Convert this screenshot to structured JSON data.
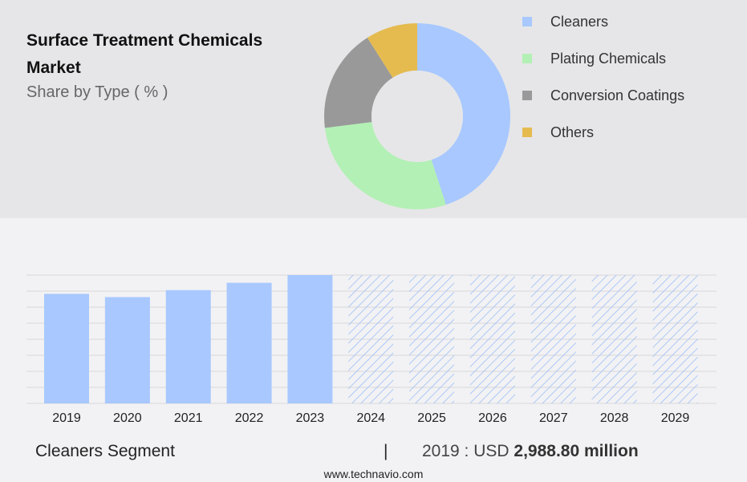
{
  "header": {
    "title": "Surface Treatment Chemicals Market",
    "subtitle": "Share by Type ( % )"
  },
  "footer": {
    "segment_label": "Cleaners Segment",
    "divider": "|",
    "year_label": "2019 : USD",
    "value_label": "2,988.80 million",
    "source": "www.technavio.com"
  },
  "chart_data": [
    {
      "type": "pie",
      "style": "donut",
      "title": "Surface Treatment Chemicals Market",
      "subtitle": "Share by Type ( % )",
      "categories": [
        "Cleaners",
        "Plating Chemicals",
        "Conversion Coatings",
        "Others"
      ],
      "values": [
        45,
        28,
        18,
        9
      ],
      "colors": [
        "#a8c8ff",
        "#b3f0b5",
        "#999999",
        "#e5bb50"
      ],
      "legend_position": "right"
    },
    {
      "type": "bar",
      "categories": [
        "2019",
        "2020",
        "2021",
        "2022",
        "2023",
        "2024",
        "2025",
        "2026",
        "2027",
        "2028",
        "2029"
      ],
      "values": [
        2988.8,
        2900,
        3090,
        3290,
        3500,
        3500,
        3500,
        3500,
        3500,
        3500,
        3500
      ],
      "forecast_from": "2024",
      "bar_color": "#a8c8ff",
      "forecast_style": "hatched",
      "ylim": [
        0,
        3500
      ],
      "grid": true
    }
  ]
}
